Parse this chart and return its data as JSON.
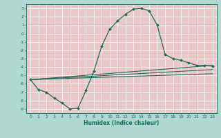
{
  "xlabel": "Humidex (Indice chaleur)",
  "bg_color": "#b0d8d0",
  "grid_color": "#e8c8c8",
  "line_color": "#1a6b5a",
  "xlim": [
    -0.5,
    23.5
  ],
  "ylim": [
    -9.5,
    3.5
  ],
  "xticks": [
    0,
    1,
    2,
    3,
    4,
    5,
    6,
    7,
    8,
    9,
    10,
    11,
    12,
    13,
    14,
    15,
    16,
    17,
    18,
    19,
    20,
    21,
    22,
    23
  ],
  "yticks": [
    3,
    2,
    1,
    0,
    -1,
    -2,
    -3,
    -4,
    -5,
    -6,
    -7,
    -8,
    -9
  ],
  "curve1_x": [
    0,
    1,
    2,
    3,
    4,
    5,
    6,
    7,
    8,
    9,
    10,
    11,
    12,
    13,
    14,
    15,
    16,
    17,
    18,
    19,
    20,
    21,
    22,
    23
  ],
  "curve1_y": [
    -5.5,
    -6.7,
    -7.0,
    -7.7,
    -8.3,
    -9.0,
    -8.9,
    -6.8,
    -4.5,
    -1.5,
    0.5,
    1.5,
    2.3,
    2.9,
    3.0,
    2.7,
    1.0,
    -2.5,
    -3.0,
    -3.2,
    -3.5,
    -3.8,
    -3.8,
    -3.9
  ],
  "line2_x": [
    0,
    23
  ],
  "line2_y": [
    -5.5,
    -3.8
  ],
  "line3_x": [
    0,
    23
  ],
  "line3_y": [
    -5.5,
    -4.3
  ],
  "line4_x": [
    0,
    23
  ],
  "line4_y": [
    -5.5,
    -4.8
  ]
}
